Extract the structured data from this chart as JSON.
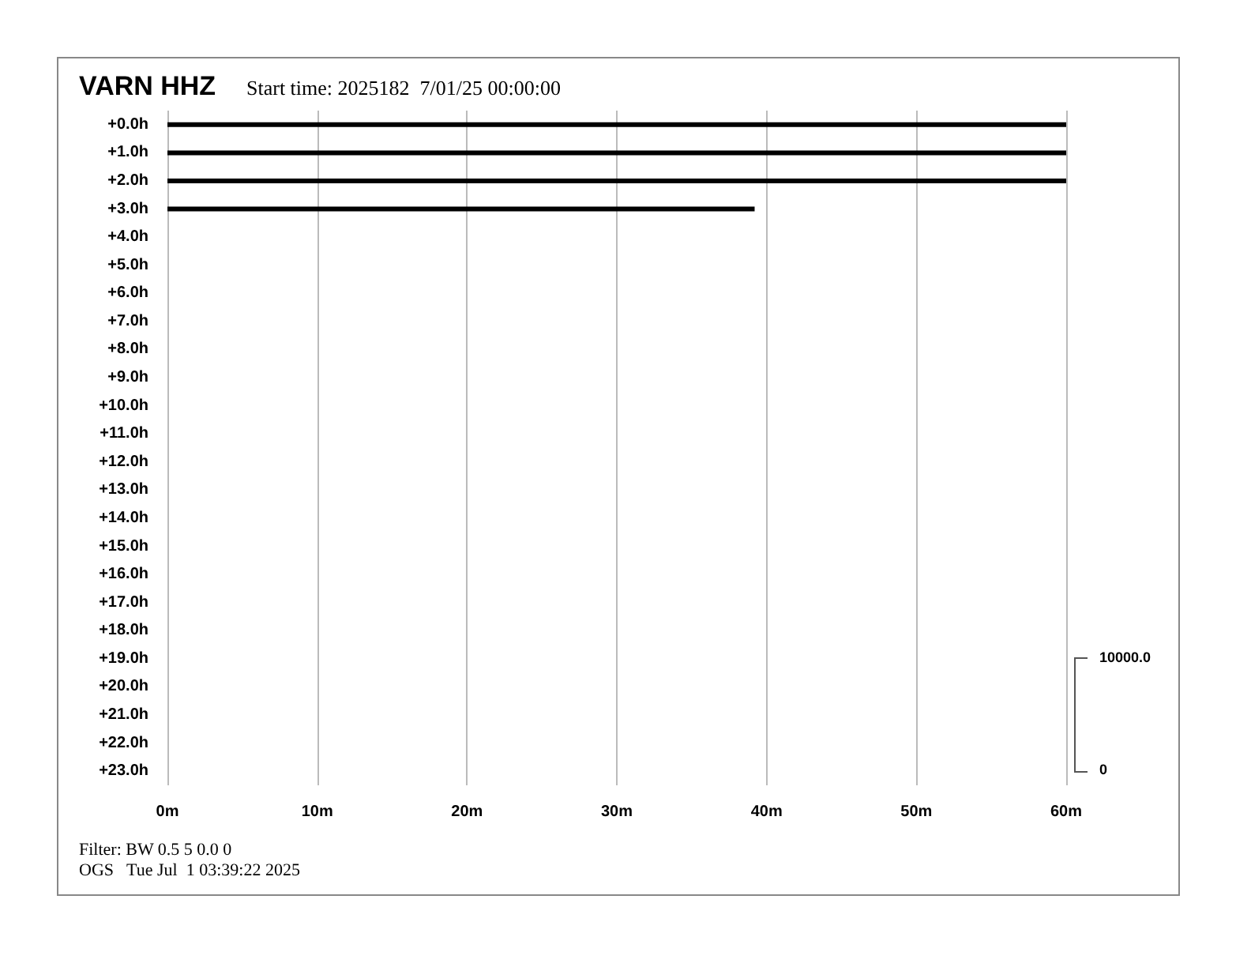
{
  "chart_data": {
    "type": "line",
    "title": "VARN HHZ",
    "subtitle": "Start time: 2025182  7/01/25 00:00:00",
    "xlim": [
      0,
      60
    ],
    "xticks": [
      {
        "value": 0,
        "label": "0m"
      },
      {
        "value": 10,
        "label": "10m"
      },
      {
        "value": 20,
        "label": "20m"
      },
      {
        "value": 30,
        "label": "30m"
      },
      {
        "value": 40,
        "label": "40m"
      },
      {
        "value": 50,
        "label": "50m"
      },
      {
        "value": 60,
        "label": "60m"
      }
    ],
    "ylim": [
      23.5,
      -0.5
    ],
    "yticks": [
      {
        "value": 0,
        "label": "+0.0h"
      },
      {
        "value": 1,
        "label": "+1.0h"
      },
      {
        "value": 2,
        "label": "+2.0h"
      },
      {
        "value": 3,
        "label": "+3.0h"
      },
      {
        "value": 4,
        "label": "+4.0h"
      },
      {
        "value": 5,
        "label": "+5.0h"
      },
      {
        "value": 6,
        "label": "+6.0h"
      },
      {
        "value": 7,
        "label": "+7.0h"
      },
      {
        "value": 8,
        "label": "+8.0h"
      },
      {
        "value": 9,
        "label": "+9.0h"
      },
      {
        "value": 10,
        "label": "+10.0h"
      },
      {
        "value": 11,
        "label": "+11.0h"
      },
      {
        "value": 12,
        "label": "+12.0h"
      },
      {
        "value": 13,
        "label": "+13.0h"
      },
      {
        "value": 14,
        "label": "+14.0h"
      },
      {
        "value": 15,
        "label": "+15.0h"
      },
      {
        "value": 16,
        "label": "+16.0h"
      },
      {
        "value": 17,
        "label": "+17.0h"
      },
      {
        "value": 18,
        "label": "+18.0h"
      },
      {
        "value": 19,
        "label": "+19.0h"
      },
      {
        "value": 20,
        "label": "+20.0h"
      },
      {
        "value": 21,
        "label": "+21.0h"
      },
      {
        "value": 22,
        "label": "+22.0h"
      },
      {
        "value": 23,
        "label": "+23.0h"
      }
    ],
    "series": [
      {
        "color": "#000000",
        "x": [
          0,
          60
        ],
        "values": [
          0,
          0
        ]
      },
      {
        "color": "#000000",
        "x": [
          0,
          60
        ],
        "values": [
          1,
          1
        ]
      },
      {
        "color": "#000000",
        "x": [
          0,
          60
        ],
        "values": [
          2,
          2
        ]
      },
      {
        "color": "#000000",
        "x": [
          0,
          39.2
        ],
        "values": [
          3,
          3
        ]
      }
    ],
    "grid": "x",
    "marker": "none",
    "line_style": "solid",
    "annotations": [
      "10000.0",
      "0",
      "Filter: BW 0.5 5 0.0 0",
      "OGS   Tue Jul  1 03:39:22 2025"
    ]
  }
}
